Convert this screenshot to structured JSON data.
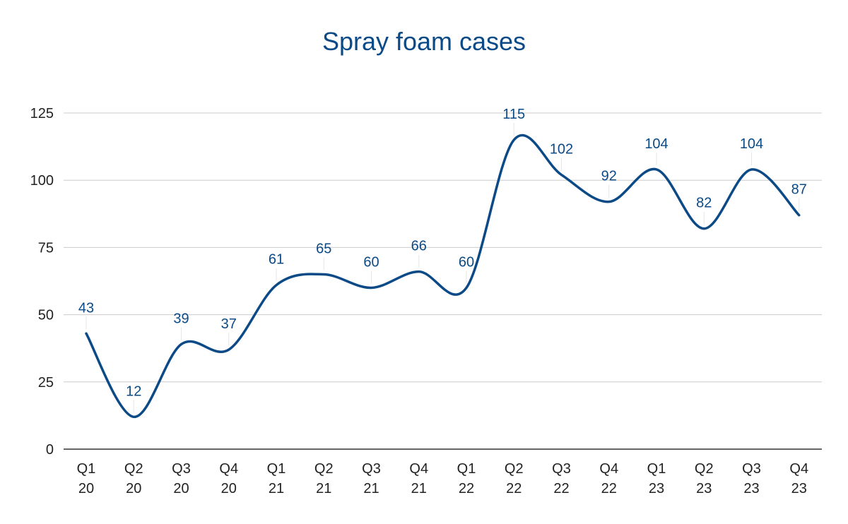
{
  "chart_data": {
    "type": "line",
    "title": "Spray foam cases",
    "xlabel": "",
    "ylabel": "",
    "categories": [
      [
        "Q1",
        "20"
      ],
      [
        "Q2",
        "20"
      ],
      [
        "Q3",
        "20"
      ],
      [
        "Q4",
        "20"
      ],
      [
        "Q1",
        "21"
      ],
      [
        "Q2",
        "21"
      ],
      [
        "Q3",
        "21"
      ],
      [
        "Q4",
        "21"
      ],
      [
        "Q1",
        "22"
      ],
      [
        "Q2",
        "22"
      ],
      [
        "Q3",
        "22"
      ],
      [
        "Q4",
        "22"
      ],
      [
        "Q1",
        "23"
      ],
      [
        "Q2",
        "23"
      ],
      [
        "Q3",
        "23"
      ],
      [
        "Q4",
        "23"
      ]
    ],
    "series": [
      {
        "values": [
          43,
          12,
          39,
          37,
          61,
          65,
          60,
          66,
          60,
          115,
          102,
          92,
          104,
          82,
          104,
          87
        ]
      }
    ],
    "ylim": [
      0,
      125
    ],
    "yticks": [
      0,
      25,
      50,
      75,
      100,
      125
    ],
    "grid": true,
    "smooth": true,
    "line_color": "#0b4a86",
    "title_color": "#0b4a86"
  }
}
